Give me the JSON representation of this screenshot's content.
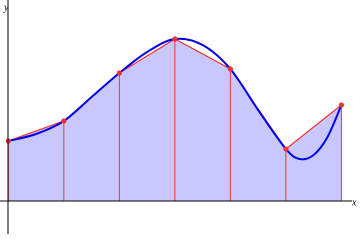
{
  "chart_data": {
    "type": "line",
    "xlabel": "x",
    "ylabel": "y",
    "xlim": [
      -0.15,
      6.2
    ],
    "ylim": [
      -0.8,
      5.0
    ],
    "fill": "#c8c8ff",
    "series": [
      {
        "color": "#ee3333",
        "x": [
          0,
          1,
          2,
          3,
          4,
          5,
          6
        ],
        "values": [
          1.5,
          2.0,
          3.2,
          4.05,
          3.3,
          1.3,
          2.4
        ]
      },
      {
        "color": "#0000e6",
        "x": [
          0,
          0.5,
          1,
          1.5,
          2,
          2.5,
          3,
          3.5,
          4,
          4.5,
          5,
          5.25,
          5.5,
          5.75,
          6
        ],
        "values": [
          1.5,
          1.675,
          2.0,
          2.6,
          3.2,
          3.725,
          4.05,
          3.9,
          3.3,
          2.275,
          1.3,
          1.05,
          1.15,
          1.6,
          2.4
        ]
      }
    ]
  }
}
